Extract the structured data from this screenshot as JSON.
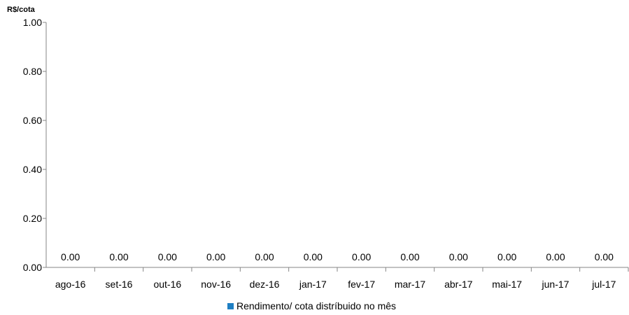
{
  "chart_data": {
    "type": "bar",
    "title": "",
    "ylabel": "R$/cota",
    "xlabel": "",
    "categories": [
      "ago-16",
      "set-16",
      "out-16",
      "nov-16",
      "dez-16",
      "jan-17",
      "fev-17",
      "mar-17",
      "abr-17",
      "mai-17",
      "jun-17",
      "jul-17"
    ],
    "series": [
      {
        "name": "Rendimento/ cota distríbuido no mês",
        "values": [
          0,
          0,
          0,
          0,
          0,
          0,
          0,
          0,
          0,
          0,
          0,
          0
        ],
        "color": "#1f7fc3"
      }
    ],
    "ylim": [
      0,
      1
    ],
    "yticks": [
      "0.00",
      "0.20",
      "0.40",
      "0.60",
      "0.80",
      "1.00"
    ],
    "data_labels": [
      "0.00",
      "0.00",
      "0.00",
      "0.00",
      "0.00",
      "0.00",
      "0.00",
      "0.00",
      "0.00",
      "0.00",
      "0.00",
      "0.00"
    ],
    "grid": false,
    "legend_position": "bottom"
  }
}
